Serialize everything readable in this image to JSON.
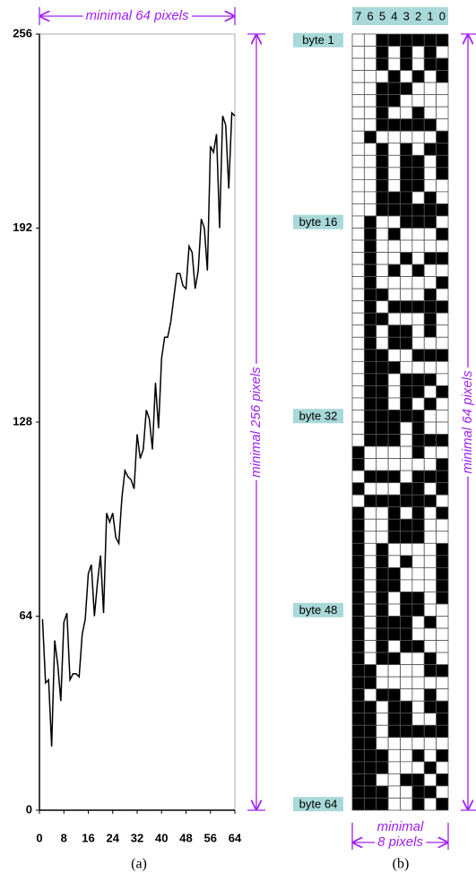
{
  "chart_data": {
    "type": "line",
    "color": "#000000",
    "x": [
      1,
      2,
      3,
      4,
      5,
      6,
      7,
      8,
      9,
      10,
      11,
      12,
      13,
      14,
      15,
      16,
      17,
      18,
      19,
      20,
      21,
      22,
      23,
      24,
      25,
      26,
      27,
      28,
      29,
      30,
      31,
      32,
      33,
      34,
      35,
      36,
      37,
      38,
      39,
      40,
      41,
      42,
      43,
      44,
      45,
      46,
      47,
      48,
      49,
      50,
      51,
      52,
      53,
      54,
      55,
      56,
      57,
      58,
      59,
      60,
      61,
      62,
      63,
      64
    ],
    "values": [
      63,
      42,
      43,
      21,
      56,
      48,
      36,
      62,
      65,
      43,
      45,
      45,
      44,
      58,
      63,
      78,
      81,
      64,
      75,
      84,
      65,
      98,
      95,
      98,
      90,
      88,
      103,
      112,
      110,
      109,
      106,
      124,
      116,
      119,
      132,
      129,
      119,
      141,
      126,
      149,
      156,
      156,
      161,
      169,
      177,
      177,
      173,
      172,
      186,
      184,
      172,
      178,
      195,
      192,
      178,
      219,
      217,
      223,
      192,
      229,
      226,
      205,
      230,
      229
    ],
    "xlim": [
      0,
      64
    ],
    "ylim": [
      0,
      256
    ],
    "xticks": [
      0,
      8,
      16,
      24,
      32,
      40,
      48,
      56,
      64
    ],
    "yticks": [
      0,
      64,
      128,
      192,
      256
    ]
  },
  "bit_grid": {
    "bit_labels": [
      7,
      6,
      5,
      4,
      3,
      2,
      1,
      0
    ],
    "byte_labels": [
      "byte 1",
      "byte 16",
      "byte 32",
      "byte 48",
      "byte 64"
    ]
  },
  "annotations": {
    "top": "minimal 64 pixels",
    "chart_height": "minimal 256 pixels",
    "grid_height": "minimal 64 pixels",
    "grid_width_1": "minimal",
    "grid_width_2": "8 pixels"
  },
  "captions": [
    "(a)",
    "(b)"
  ]
}
